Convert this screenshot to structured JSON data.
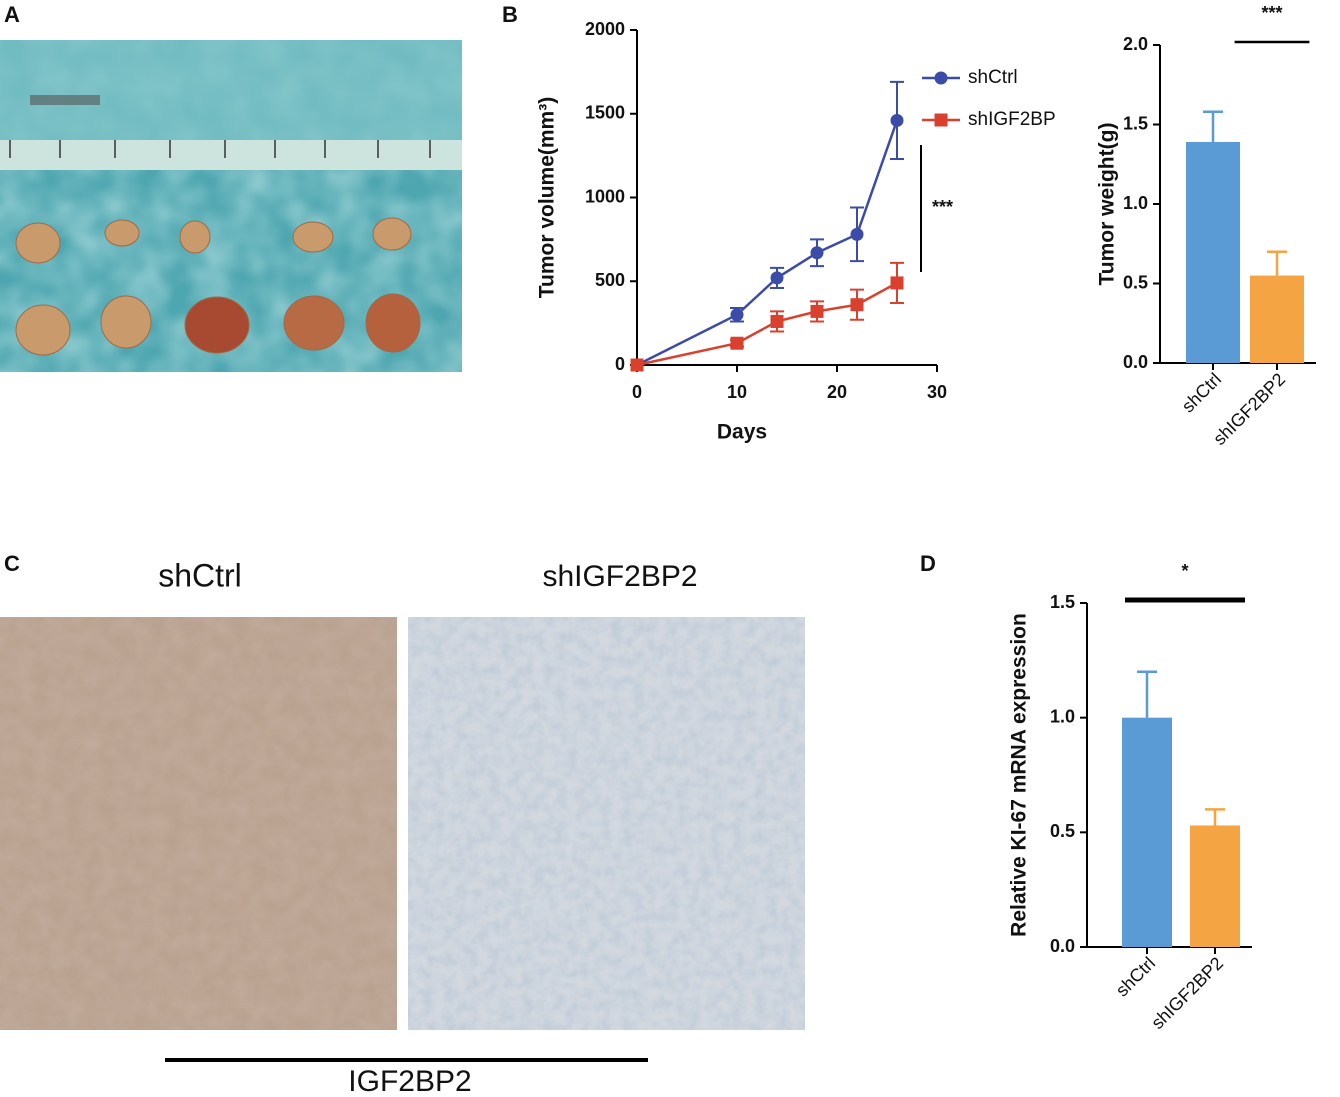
{
  "panel_labels": [
    "A",
    "B",
    "C",
    "D"
  ],
  "ihc": {
    "titles": [
      "shCtrl",
      "shIGF2BP2"
    ],
    "marker": "IGF2BP2"
  },
  "chart_data": [
    {
      "type": "line",
      "xlabel": "Days",
      "ylabel": "Tumor volume(mm³)",
      "x": [
        0,
        10,
        14,
        18,
        22,
        26
      ],
      "series": [
        {
          "name": "shCtrl",
          "color": "#3b4ba8",
          "values": [
            0,
            300,
            520,
            670,
            780,
            1460
          ],
          "errors": [
            0,
            40,
            60,
            80,
            160,
            230
          ]
        },
        {
          "name": "shIGF2BP",
          "color": "#d9412e",
          "values": [
            0,
            130,
            260,
            320,
            360,
            490
          ],
          "errors": [
            0,
            20,
            60,
            60,
            90,
            120
          ]
        }
      ],
      "xlim": [
        0,
        30
      ],
      "xticks": [
        0,
        10,
        20,
        30
      ],
      "ylim": [
        0,
        2000
      ],
      "yticks": [
        0,
        500,
        1000,
        1500,
        2000
      ],
      "annotation": "***",
      "legend": "upper right"
    },
    {
      "type": "bar",
      "ylabel": "Tumor weight(g)",
      "categories": [
        "shCtrl",
        "shIGF2BP2"
      ],
      "values": [
        1.39,
        0.55
      ],
      "errors": [
        0.19,
        0.15
      ],
      "colors": [
        "#5b9bd5",
        "#f4a442"
      ],
      "ylim": [
        0,
        2.0
      ],
      "yticks": [
        {
          "value": 0,
          "label": "0.0"
        },
        {
          "value": 0.5,
          "label": "0.5"
        },
        {
          "value": 1,
          "label": "1.0"
        },
        {
          "value": 1.5,
          "label": "1.5"
        },
        {
          "value": 2,
          "label": "2.0"
        }
      ],
      "annotation": "***"
    },
    {
      "type": "bar",
      "ylabel": "Relative KI-67 mRNA expression",
      "categories": [
        "shCtrl",
        "shIGF2BP2"
      ],
      "values": [
        1.0,
        0.53
      ],
      "errors": [
        0.2,
        0.07
      ],
      "colors": [
        "#5b9bd5",
        "#f4a442"
      ],
      "ylim": [
        0,
        1.5
      ],
      "yticks": [
        {
          "value": 0,
          "label": "0.0"
        },
        {
          "value": 0.5,
          "label": "0.5"
        },
        {
          "value": 1,
          "label": "1.0"
        },
        {
          "value": 1.5,
          "label": "1.5"
        }
      ],
      "annotation": "*"
    }
  ]
}
